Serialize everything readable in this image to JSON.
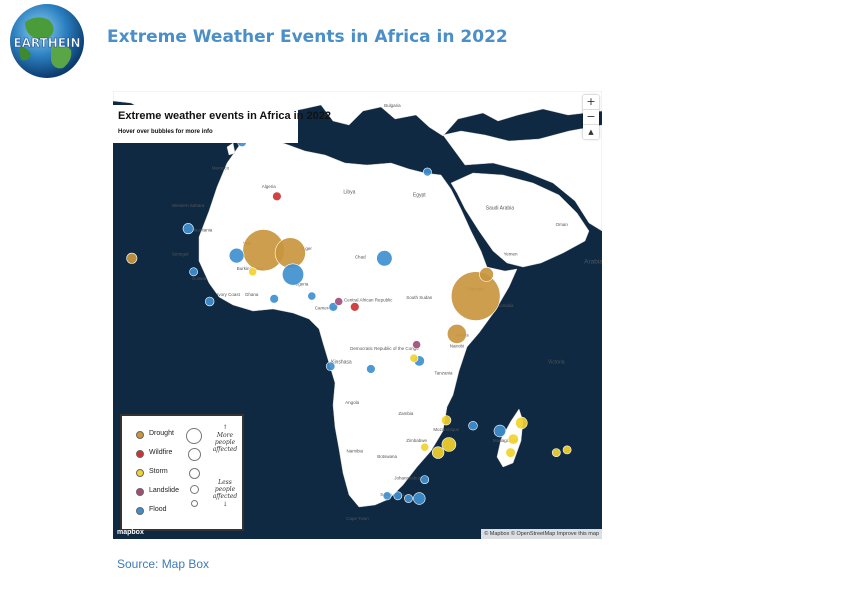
{
  "header": {
    "logo_text": "EARTHEIN",
    "title": "Extreme Weather Events in Africa in 2022"
  },
  "map": {
    "title": "Extreme weather events in Africa in 2022",
    "subtitle": "Hover over bubbles for more info",
    "zoom_in": "+",
    "zoom_out": "−",
    "compass": "▲",
    "attribution": "© Mapbox © OpenStreetMap Improve this map",
    "provider_logo": "mapbox",
    "colors": {
      "ocean": "#0f2942",
      "land": "#ffffff",
      "Drought": "#c8963e",
      "Wildfire": "#cc3333",
      "Storm": "#f2d22e",
      "Landslide": "#a04e78",
      "Flood": "#3f8fcf"
    },
    "labels": {
      "sea_arabian": "Arabian Sea",
      "bulgaria": "Bulgaria",
      "ukraine": "Ukraine",
      "libya": "Libya",
      "egypt": "Egypt",
      "algeria": "Algeria",
      "saudi": "Saudi Arabia",
      "mali": "Mali",
      "niger": "Niger",
      "chad": "Chad",
      "sudan": "South Sudan",
      "ethiopia": "Ethiopia",
      "kenya": "Kenya",
      "drc": "Democratic Republic of the Congo",
      "angola": "Angola",
      "namibia": "Namibia",
      "botswana": "Botswana",
      "zimbabwe": "Zimbabwe",
      "mozambique": "Mozambique",
      "south_africa": "South Africa",
      "madagascar": "Madagascar",
      "cape_town": "Cape Town",
      "johannesburg": "Johannesburg",
      "victoria": "Victoria",
      "kinshasa": "Kinshasa",
      "nairobi": "Nairobi",
      "car": "Central African Republic",
      "mauritania": "Mauritania",
      "yemen": "Yemen",
      "oman": "Oman",
      "somalia": "Somalia",
      "tanzania": "Tanzania",
      "zambia": "Zambia",
      "nigeria": "Nigeria",
      "cameroon": "Cameroon",
      "burkina": "Burkina Faso",
      "ivory": "Ivory Coast",
      "ghana": "Ghana",
      "guinea": "Guinea",
      "senegal": "Senegal",
      "west_sahara": "Western Sahara",
      "morocco": "Morocco"
    },
    "legend": {
      "types": [
        {
          "label": "Drought",
          "key": "Drought"
        },
        {
          "label": "Wildfire",
          "key": "Wildfire"
        },
        {
          "label": "Storm",
          "key": "Storm"
        },
        {
          "label": "Landslide",
          "key": "Landslide"
        },
        {
          "label": "Flood",
          "key": "Flood"
        }
      ],
      "more_arrow": "↑",
      "more_label": "More people affected",
      "less_label": "Less people affected",
      "less_arrow": "↓"
    },
    "events": [
      {
        "type": "Drought",
        "lon": 1,
        "lat": 16.5,
        "size": 5
      },
      {
        "type": "Drought",
        "lon": 6,
        "lat": 16,
        "size": 3.5
      },
      {
        "type": "Drought",
        "lon": 40.5,
        "lat": 8,
        "size": 6
      },
      {
        "type": "Drought",
        "lon": 37,
        "lat": 1,
        "size": 2
      },
      {
        "type": "Drought",
        "lon": 42.5,
        "lat": 12,
        "size": 1.3
      },
      {
        "type": "Drought",
        "lon": -23.5,
        "lat": 15,
        "size": 0.8
      },
      {
        "type": "Flood",
        "lon": 6.5,
        "lat": 12,
        "size": 2.3
      },
      {
        "type": "Flood",
        "lon": -4,
        "lat": 15.5,
        "size": 1.4
      },
      {
        "type": "Flood",
        "lon": 23.5,
        "lat": 15,
        "size": 1.5
      },
      {
        "type": "Flood",
        "lon": -13,
        "lat": 20.5,
        "size": 0.8
      },
      {
        "type": "Flood",
        "lon": -3,
        "lat": 36.5,
        "size": 0.6
      },
      {
        "type": "Flood",
        "lon": 30,
        "lat": -29.5,
        "size": 1
      },
      {
        "type": "Flood",
        "lon": 45,
        "lat": -17,
        "size": 1
      },
      {
        "type": "Flood",
        "lon": 30,
        "lat": -4,
        "size": 0.8
      },
      {
        "type": "Flood",
        "lon": 14,
        "lat": 6,
        "size": 0.6
      },
      {
        "type": "Flood",
        "lon": 3,
        "lat": 7.5,
        "size": 0.6
      },
      {
        "type": "Flood",
        "lon": -9,
        "lat": 7,
        "size": 0.6
      },
      {
        "type": "Flood",
        "lon": 13.5,
        "lat": -5,
        "size": 0.6
      },
      {
        "type": "Flood",
        "lon": 21,
        "lat": -5.5,
        "size": 0.6
      },
      {
        "type": "Flood",
        "lon": 40,
        "lat": -16,
        "size": 0.6
      },
      {
        "type": "Flood",
        "lon": 28,
        "lat": -29.5,
        "size": 0.5
      },
      {
        "type": "Flood",
        "lon": 26,
        "lat": -29,
        "size": 0.5
      },
      {
        "type": "Flood",
        "lon": 24,
        "lat": -29,
        "size": 0.5
      },
      {
        "type": "Flood",
        "lon": 31,
        "lat": -26,
        "size": 0.5
      },
      {
        "type": "Flood",
        "lon": -12,
        "lat": 12.5,
        "size": 0.5
      },
      {
        "type": "Flood",
        "lon": 31.5,
        "lat": 31,
        "size": 0.5
      },
      {
        "type": "Flood",
        "lon": 10,
        "lat": 8,
        "size": 0.5
      },
      {
        "type": "Wildfire",
        "lon": 3.5,
        "lat": 26.5,
        "size": 0.6
      },
      {
        "type": "Wildfire",
        "lon": 18,
        "lat": 6,
        "size": 0.6
      },
      {
        "type": "Landslide",
        "lon": 15,
        "lat": 7,
        "size": 0.5
      },
      {
        "type": "Landslide",
        "lon": 29.5,
        "lat": -1,
        "size": 0.5
      },
      {
        "type": "Storm",
        "lon": 35.5,
        "lat": -19.5,
        "size": 1.3
      },
      {
        "type": "Storm",
        "lon": 33.5,
        "lat": -21,
        "size": 1
      },
      {
        "type": "Storm",
        "lon": 49,
        "lat": -15.5,
        "size": 1
      },
      {
        "type": "Storm",
        "lon": 47.5,
        "lat": -18.5,
        "size": 0.8
      },
      {
        "type": "Storm",
        "lon": 47,
        "lat": -21,
        "size": 0.7
      },
      {
        "type": "Storm",
        "lon": 35,
        "lat": -15,
        "size": 0.7
      },
      {
        "type": "Storm",
        "lon": 57.5,
        "lat": -20.5,
        "size": 0.5
      },
      {
        "type": "Storm",
        "lon": 55.5,
        "lat": -21,
        "size": 0.5
      },
      {
        "type": "Storm",
        "lon": 29,
        "lat": -3.5,
        "size": 0.5
      },
      {
        "type": "Storm",
        "lon": -1,
        "lat": 12.5,
        "size": 0.5
      },
      {
        "type": "Storm",
        "lon": 31,
        "lat": -20,
        "size": 0.5
      }
    ]
  },
  "footer": {
    "source": "Source: Map Box"
  }
}
